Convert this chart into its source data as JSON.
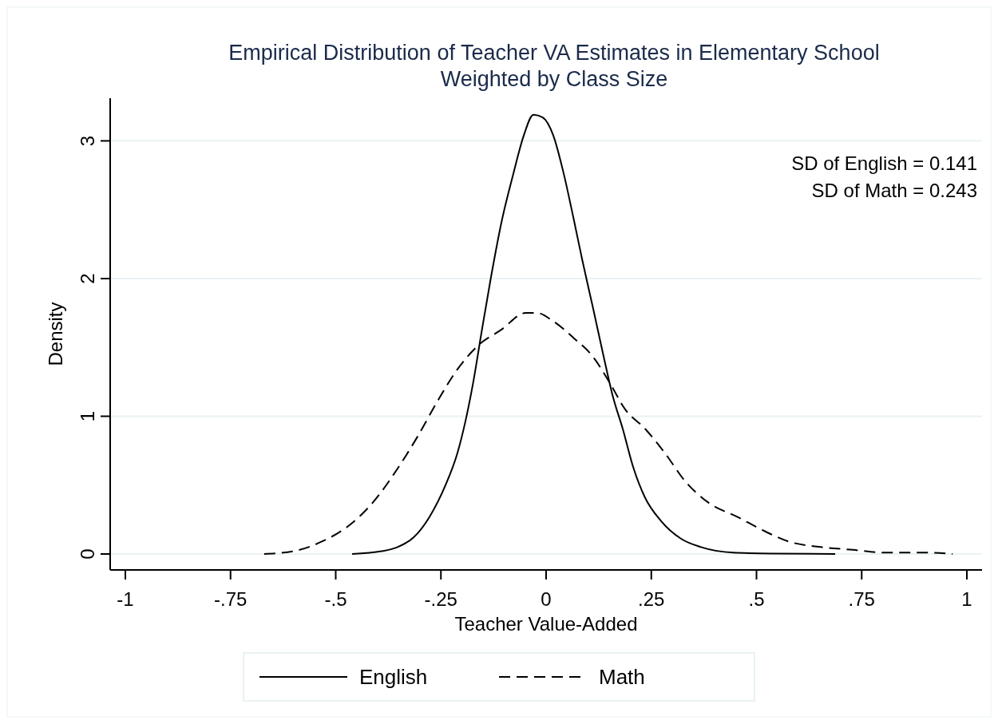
{
  "chart_data": {
    "type": "line",
    "title": "Empirical Distribution of Teacher VA Estimates in Elementary School",
    "subtitle": "Weighted by Class Size",
    "xlabel": "Teacher Value-Added",
    "ylabel": "Density",
    "xlim": [
      -1.036,
      1.036
    ],
    "ylim": [
      -0.116,
      3.31
    ],
    "xticks": [
      {
        "value": -1,
        "label": "-1"
      },
      {
        "value": -0.75,
        "label": "-.75"
      },
      {
        "value": -0.5,
        "label": "-.5"
      },
      {
        "value": -0.25,
        "label": "-.25"
      },
      0,
      {
        "value": 0.25,
        "label": ".25"
      },
      {
        "value": 0.5,
        "label": ".5"
      },
      {
        "value": 0.75,
        "label": ".75"
      },
      1
    ],
    "yticks": [
      0,
      1,
      2,
      3
    ],
    "grid": "y",
    "legend": "bottom",
    "annotations": [
      "SD of English = 0.141",
      "SD of Math = 0.243"
    ],
    "series": [
      {
        "name": "English",
        "color": "#000000",
        "line_style": "solid",
        "x": [
          -0.461,
          -0.391,
          -0.353,
          -0.315,
          -0.277,
          -0.239,
          -0.211,
          -0.192,
          -0.173,
          -0.154,
          -0.131,
          -0.106,
          -0.078,
          -0.053,
          -0.03,
          -0.008,
          0.017,
          0.042,
          0.065,
          0.087,
          0.112,
          0.137,
          0.159,
          0.182,
          0.207,
          0.235,
          0.273,
          0.321,
          0.368,
          0.444,
          0.539,
          0.687
        ],
        "values": [
          0,
          0.02,
          0.05,
          0.12,
          0.27,
          0.5,
          0.73,
          0.96,
          1.25,
          1.6,
          2.01,
          2.41,
          2.76,
          3.04,
          3.19,
          3.17,
          3.04,
          2.76,
          2.44,
          2.12,
          1.78,
          1.43,
          1.14,
          0.91,
          0.63,
          0.41,
          0.24,
          0.11,
          0.05,
          0.01,
          0.003,
          0
        ]
      },
      {
        "name": "Math",
        "color": "#000000",
        "line_style": "dashed",
        "x": [
          -0.67,
          -0.6,
          -0.533,
          -0.467,
          -0.41,
          -0.353,
          -0.306,
          -0.258,
          -0.211,
          -0.163,
          -0.106,
          -0.049,
          -0.021,
          0.017,
          0.065,
          0.112,
          0.15,
          0.188,
          0.235,
          0.283,
          0.33,
          0.387,
          0.454,
          0.51,
          0.577,
          0.653,
          0.729,
          0.805,
          0.899,
          0.966
        ],
        "values": [
          0,
          0.02,
          0.09,
          0.21,
          0.38,
          0.62,
          0.85,
          1.11,
          1.34,
          1.51,
          1.63,
          1.75,
          1.75,
          1.69,
          1.57,
          1.43,
          1.25,
          1.05,
          0.91,
          0.73,
          0.53,
          0.37,
          0.27,
          0.18,
          0.09,
          0.05,
          0.03,
          0.01,
          0.01,
          0
        ]
      }
    ]
  }
}
